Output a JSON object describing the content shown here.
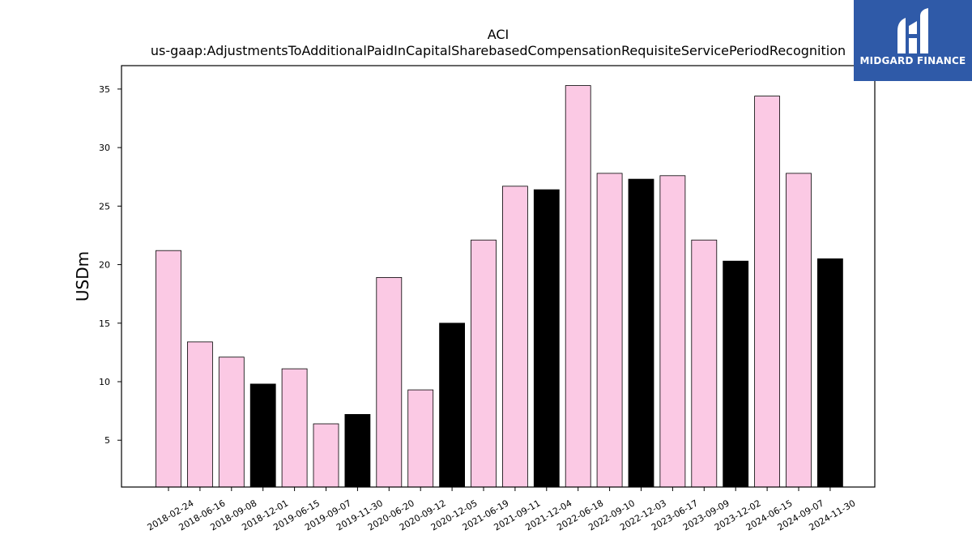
{
  "chart_data": {
    "type": "bar",
    "title": "ACI",
    "subtitle": "us-gaap:AdjustmentsToAdditionalPaidInCapitalSharebasedCompensationRequisiteServicePeriodRecognition",
    "ylabel": "USDm",
    "xlabel": "",
    "ylim": [
      1,
      37
    ],
    "yticks": [
      5,
      10,
      15,
      20,
      25,
      30,
      35
    ],
    "grid": false,
    "categories": [
      "2018-02-24",
      "2018-06-16",
      "2018-09-08",
      "2018-12-01",
      "2019-06-15",
      "2019-09-07",
      "2019-11-30",
      "2020-06-20",
      "2020-09-12",
      "2020-12-05",
      "2021-06-19",
      "2021-09-11",
      "2021-12-04",
      "2022-06-18",
      "2022-09-10",
      "2022-12-03",
      "2023-06-17",
      "2023-09-09",
      "2023-12-02",
      "2024-06-15",
      "2024-09-07",
      "2024-11-30"
    ],
    "values": [
      21.2,
      13.4,
      12.1,
      9.8,
      11.1,
      6.4,
      7.2,
      18.9,
      9.3,
      15.0,
      22.1,
      26.7,
      26.4,
      35.3,
      27.8,
      27.3,
      27.6,
      22.1,
      20.3,
      34.4,
      27.8,
      20.5
    ],
    "highlight": [
      false,
      false,
      false,
      true,
      false,
      false,
      true,
      false,
      false,
      true,
      false,
      false,
      true,
      false,
      false,
      true,
      false,
      false,
      true,
      false,
      false,
      true
    ],
    "colors": {
      "normal": "#fbc9e4",
      "highlight": "#000000",
      "edge": "#000000"
    }
  },
  "logo": {
    "text": "MIDGARD FINANCE",
    "background": "#2f5aa8"
  }
}
